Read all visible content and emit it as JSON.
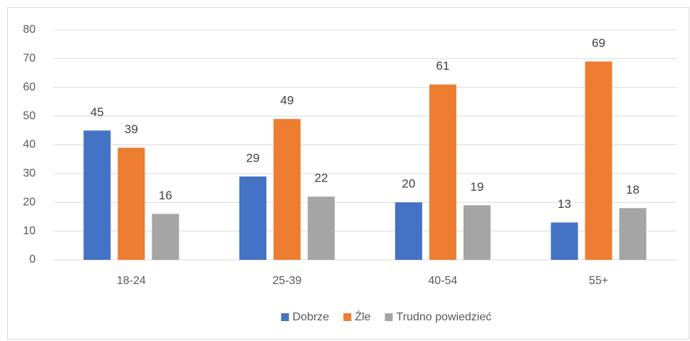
{
  "chart_data": {
    "type": "bar",
    "categories": [
      "18-24",
      "25-39",
      "40-54",
      "55+"
    ],
    "series": [
      {
        "name": "Dobrze",
        "color": "#4472c4",
        "values": [
          45,
          29,
          20,
          13
        ]
      },
      {
        "name": "Źle",
        "color": "#ed7d31",
        "values": [
          39,
          49,
          61,
          69
        ]
      },
      {
        "name": "Trudno powiedzieć",
        "color": "#a5a5a5",
        "values": [
          16,
          22,
          19,
          18
        ]
      }
    ],
    "ylim": [
      0,
      80
    ],
    "yticks": [
      0,
      10,
      20,
      30,
      40,
      50,
      60,
      70,
      80
    ],
    "grid": true,
    "legend": "bottom"
  }
}
